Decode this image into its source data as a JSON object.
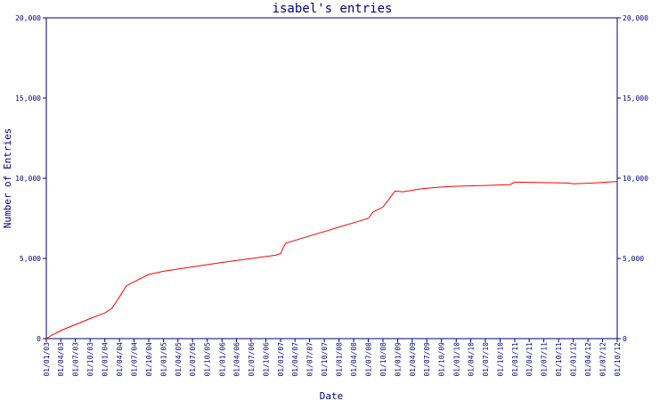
{
  "chart_data": {
    "type": "line",
    "title": "isabel's entries",
    "xlabel": "Date",
    "ylabel": "Number of Entries",
    "ylim": [
      0,
      20000
    ],
    "y_ticks": [
      0,
      5000,
      10000,
      15000,
      20000
    ],
    "y_tick_labels": [
      "0",
      "5,000",
      "10,000",
      "15,000",
      "20,000"
    ],
    "right_axis_labels": true,
    "grid": false,
    "x_tick_labels": [
      "01/01/03",
      "01/04/03",
      "01/07/03",
      "01/10/03",
      "01/01/04",
      "01/04/04",
      "01/07/04",
      "01/10/04",
      "01/01/05",
      "01/04/05",
      "01/07/05",
      "01/10/05",
      "01/01/06",
      "01/04/06",
      "01/07/06",
      "01/10/06",
      "01/01/07",
      "01/04/07",
      "01/07/07",
      "01/10/07",
      "01/01/08",
      "01/04/08",
      "01/07/08",
      "01/10/08",
      "01/01/09",
      "01/04/09",
      "01/07/09",
      "01/10/09",
      "01/01/10",
      "01/04/10",
      "01/07/10",
      "01/10/10",
      "01/01/11",
      "01/04/11",
      "01/07/11",
      "01/10/11",
      "01/01/12",
      "01/04/12",
      "01/07/12",
      "01/10/12"
    ],
    "series": [
      {
        "color": "#ff0000",
        "points": [
          [
            "2003-01-01",
            0
          ],
          [
            "2003-02-01",
            200
          ],
          [
            "2003-04-01",
            500
          ],
          [
            "2003-06-01",
            750
          ],
          [
            "2003-10-01",
            1250
          ],
          [
            "2004-01-01",
            1600
          ],
          [
            "2004-02-15",
            1900
          ],
          [
            "2004-04-01",
            2600
          ],
          [
            "2004-05-15",
            3300
          ],
          [
            "2004-08-01",
            3700
          ],
          [
            "2004-10-01",
            4000
          ],
          [
            "2005-01-01",
            4200
          ],
          [
            "2006-01-01",
            4750
          ],
          [
            "2006-12-01",
            5200
          ],
          [
            "2007-01-01",
            5300
          ],
          [
            "2007-02-01",
            5950
          ],
          [
            "2007-07-01",
            6400
          ],
          [
            "2008-07-01",
            7500
          ],
          [
            "2008-08-01",
            7900
          ],
          [
            "2008-10-01",
            8200
          ],
          [
            "2008-12-15",
            9200
          ],
          [
            "2009-02-01",
            9150
          ],
          [
            "2009-06-01",
            9350
          ],
          [
            "2009-10-01",
            9450
          ],
          [
            "2010-01-01",
            9500
          ],
          [
            "2010-07-01",
            9550
          ],
          [
            "2010-12-01",
            9600
          ],
          [
            "2011-01-01",
            9750
          ],
          [
            "2011-03-01",
            9750
          ],
          [
            "2011-12-01",
            9700
          ],
          [
            "2012-01-01",
            9650
          ],
          [
            "2012-05-01",
            9700
          ],
          [
            "2012-10-01",
            9800
          ]
        ]
      }
    ]
  }
}
